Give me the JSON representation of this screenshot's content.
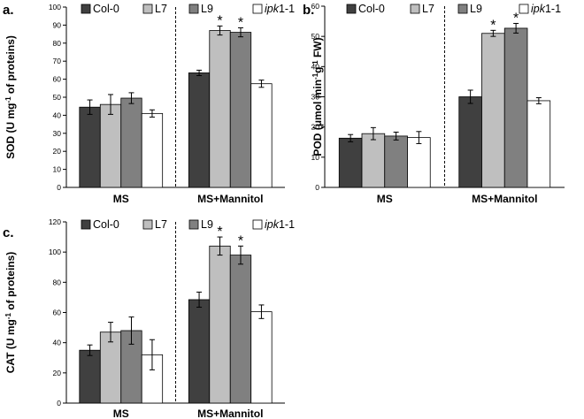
{
  "chart_data": [
    {
      "type": "bar",
      "panel": "a.",
      "ylabel_main": "SOD (U mg",
      "ylabel_sup": "-1",
      "ylabel_rest": " of proteins)",
      "ylim": [
        0,
        100
      ],
      "yticks": [
        0,
        10,
        20,
        30,
        40,
        50,
        60,
        70,
        80,
        90,
        100
      ],
      "categories": [
        "MS",
        "MS+Mannitol"
      ],
      "series": [
        {
          "name": "Col-0",
          "values": [
            44.5,
            63.5
          ],
          "errors": [
            4,
            1.5
          ],
          "color": "#404040"
        },
        {
          "name": "L7",
          "values": [
            46,
            87
          ],
          "errors": [
            5.5,
            2.5
          ],
          "color": "#bfbfbf"
        },
        {
          "name": "L9",
          "values": [
            49.5,
            86
          ],
          "errors": [
            3,
            2.5
          ],
          "color": "#808080"
        },
        {
          "name": "ipk1-1",
          "values": [
            41,
            57.5
          ],
          "errors": [
            2,
            2
          ],
          "color": "#ffffff"
        }
      ],
      "significance": [
        {
          "series": 1,
          "category": 1,
          "label": "*"
        },
        {
          "series": 2,
          "category": 1,
          "label": "*"
        }
      ]
    },
    {
      "type": "bar",
      "panel": "b.",
      "ylabel_main": "POD (μmol min",
      "ylabel_sup": "-1",
      "ylabel_rest": "g",
      "ylabel_sup2": "-1",
      "ylabel_rest2": " FW)",
      "ylim": [
        0,
        60
      ],
      "yticks": [
        0,
        10,
        20,
        30,
        40,
        50,
        60
      ],
      "categories": [
        "MS",
        "MS+Mannitol"
      ],
      "series": [
        {
          "name": "Col-0",
          "values": [
            16.3,
            30
          ],
          "errors": [
            1.2,
            2.2
          ],
          "color": "#404040"
        },
        {
          "name": "L7",
          "values": [
            17.8,
            51
          ],
          "errors": [
            2,
            1
          ],
          "color": "#bfbfbf"
        },
        {
          "name": "L9",
          "values": [
            17,
            52.7
          ],
          "errors": [
            1.3,
            1.6
          ],
          "color": "#808080"
        },
        {
          "name": "ipk1-1",
          "values": [
            16.5,
            28.7
          ],
          "errors": [
            2,
            1
          ],
          "color": "#ffffff"
        }
      ],
      "significance": [
        {
          "series": 1,
          "category": 1,
          "label": "*"
        },
        {
          "series": 2,
          "category": 1,
          "label": "*"
        }
      ]
    },
    {
      "type": "bar",
      "panel": "c.",
      "ylabel_main": "CAT (U mg",
      "ylabel_sup": "-1",
      "ylabel_rest": " of proteins)",
      "ylim": [
        0,
        120
      ],
      "yticks": [
        0,
        20,
        40,
        60,
        80,
        100,
        120
      ],
      "categories": [
        "MS",
        "MS+Mannitol"
      ],
      "series": [
        {
          "name": "Col-0",
          "values": [
            35,
            68.5
          ],
          "errors": [
            3.5,
            5
          ],
          "color": "#404040"
        },
        {
          "name": "L7",
          "values": [
            47,
            104
          ],
          "errors": [
            6.5,
            6
          ],
          "color": "#bfbfbf"
        },
        {
          "name": "L9",
          "values": [
            48,
            98
          ],
          "errors": [
            9,
            6
          ],
          "color": "#808080"
        },
        {
          "name": "ipk1-1",
          "values": [
            32,
            60.5
          ],
          "errors": [
            10,
            4.5
          ],
          "color": "#ffffff"
        }
      ],
      "significance": [
        {
          "series": 1,
          "category": 1,
          "label": "*"
        },
        {
          "series": 2,
          "category": 1,
          "label": "*"
        }
      ]
    }
  ]
}
